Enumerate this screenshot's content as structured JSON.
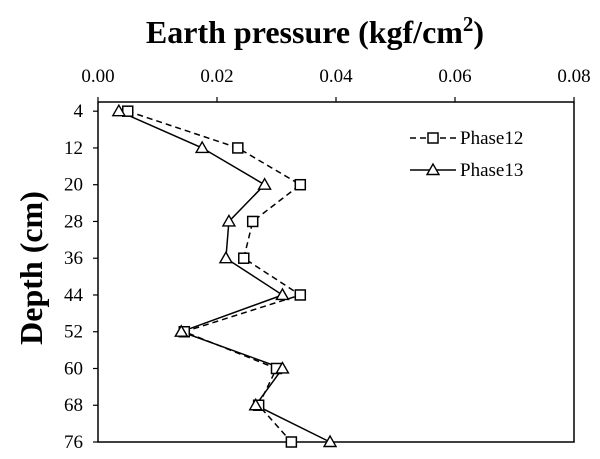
{
  "chart_data": {
    "type": "line",
    "title_main": "Earth pressure (kgf/cm",
    "title_sup": "2",
    "title_end": ")",
    "xlabel": "Earth pressure (kgf/cm2)",
    "ylabel": "Depth (cm)",
    "xlim": [
      0.0,
      0.08
    ],
    "ylim": [
      76,
      4
    ],
    "x_axis_position": "top",
    "y_axis_inverted": true,
    "xticks": [
      "0.00",
      "0.02",
      "0.04",
      "0.06",
      "0.08"
    ],
    "xtick_values": [
      0.0,
      0.02,
      0.04,
      0.06,
      0.08
    ],
    "yticks": [
      "4",
      "12",
      "20",
      "28",
      "36",
      "44",
      "52",
      "60",
      "68",
      "76"
    ],
    "ytick_values": [
      4,
      12,
      20,
      28,
      36,
      44,
      52,
      60,
      68,
      76
    ],
    "grid": false,
    "legend_position": "top-right",
    "series": [
      {
        "name": "Phase12",
        "marker": "square",
        "line_style": "dashed",
        "color": "#000000",
        "points": [
          {
            "x": 0.005,
            "y": 4
          },
          {
            "x": 0.0235,
            "y": 12
          },
          {
            "x": 0.034,
            "y": 20
          },
          {
            "x": 0.026,
            "y": 28
          },
          {
            "x": 0.0245,
            "y": 36
          },
          {
            "x": 0.034,
            "y": 44
          },
          {
            "x": 0.0145,
            "y": 52
          },
          {
            "x": 0.03,
            "y": 60
          },
          {
            "x": 0.027,
            "y": 68
          },
          {
            "x": 0.0325,
            "y": 76
          }
        ]
      },
      {
        "name": "Phase13",
        "marker": "triangle",
        "line_style": "solid",
        "color": "#000000",
        "points": [
          {
            "x": 0.0035,
            "y": 4
          },
          {
            "x": 0.0175,
            "y": 12
          },
          {
            "x": 0.028,
            "y": 20
          },
          {
            "x": 0.022,
            "y": 28
          },
          {
            "x": 0.0215,
            "y": 36
          },
          {
            "x": 0.031,
            "y": 44
          },
          {
            "x": 0.014,
            "y": 52
          },
          {
            "x": 0.031,
            "y": 60
          },
          {
            "x": 0.0265,
            "y": 68
          },
          {
            "x": 0.039,
            "y": 76
          }
        ]
      }
    ]
  }
}
